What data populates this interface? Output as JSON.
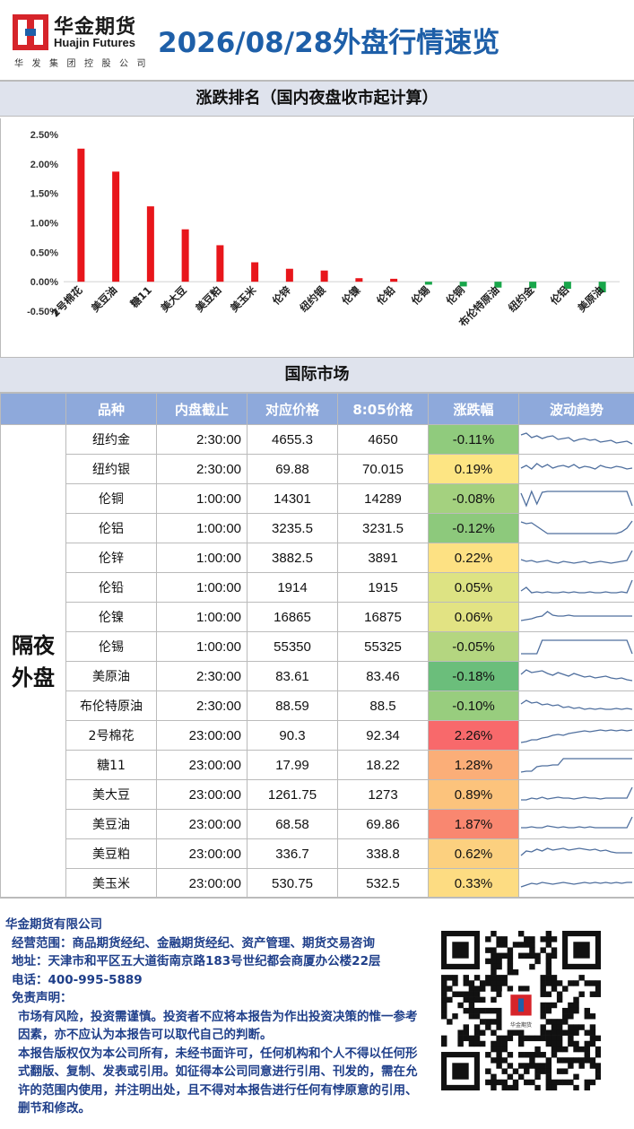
{
  "header": {
    "logo_cn": "华金期货",
    "logo_en": "Huajin Futures",
    "logo_sub": "华发集团控股公司",
    "title": "2026/08/28外盘行情速览",
    "logo_color": "#d6242a",
    "title_color": "#1e5fa8"
  },
  "ranking": {
    "title": "涨跌排名（国内夜盘收市起计算）"
  },
  "chart_data": {
    "type": "bar",
    "categories": [
      "2号棉花",
      "美豆油",
      "糖11",
      "美大豆",
      "美豆粕",
      "美玉米",
      "伦锌",
      "纽约银",
      "伦镍",
      "伦铅",
      "伦锡",
      "伦铜",
      "布伦特原油",
      "纽约金",
      "伦铝",
      "美原油"
    ],
    "values": [
      2.26,
      1.87,
      1.28,
      0.89,
      0.62,
      0.33,
      0.22,
      0.19,
      0.06,
      0.05,
      -0.05,
      -0.08,
      -0.1,
      -0.11,
      -0.12,
      -0.18
    ],
    "ylim": [
      -0.5,
      2.5
    ],
    "yticks": [
      "2.50%",
      "2.00%",
      "1.50%",
      "1.00%",
      "0.50%",
      "0.00%",
      "-0.50%"
    ],
    "up_color": "#e8161b",
    "down_color": "#18a64a"
  },
  "intl": {
    "title": "国际市场",
    "headers": [
      "品种",
      "内盘截止",
      "对应价格",
      "8:05价格",
      "涨跌幅",
      "波动趋势"
    ],
    "group_label": "隔夜外盘",
    "rows": [
      {
        "name": "纽约金",
        "cutoff": "2:30:00",
        "ref": "4655.3",
        "price": "4650",
        "chg": "-0.11%",
        "color": "#90cb7d"
      },
      {
        "name": "纽约银",
        "cutoff": "2:30:00",
        "ref": "69.88",
        "price": "70.015",
        "chg": "0.19%",
        "color": "#fde583"
      },
      {
        "name": "伦铜",
        "cutoff": "1:00:00",
        "ref": "14301",
        "price": "14289",
        "chg": "-0.08%",
        "color": "#a4d17f"
      },
      {
        "name": "伦铝",
        "cutoff": "1:00:00",
        "ref": "3235.5",
        "price": "3231.5",
        "chg": "-0.12%",
        "color": "#8dc97c"
      },
      {
        "name": "伦锌",
        "cutoff": "1:00:00",
        "ref": "3882.5",
        "price": "3891",
        "chg": "0.22%",
        "color": "#fde183"
      },
      {
        "name": "伦铅",
        "cutoff": "1:00:00",
        "ref": "1914",
        "price": "1915",
        "chg": "0.05%",
        "color": "#dde383"
      },
      {
        "name": "伦镍",
        "cutoff": "1:00:00",
        "ref": "16865",
        "price": "16875",
        "chg": "0.06%",
        "color": "#e2e383"
      },
      {
        "name": "伦锡",
        "cutoff": "1:00:00",
        "ref": "55350",
        "price": "55325",
        "chg": "-0.05%",
        "color": "#b4d680"
      },
      {
        "name": "美原油",
        "cutoff": "2:30:00",
        "ref": "83.61",
        "price": "83.46",
        "chg": "-0.18%",
        "color": "#6bbe7b"
      },
      {
        "name": "布伦特原油",
        "cutoff": "2:30:00",
        "ref": "88.59",
        "price": "88.5",
        "chg": "-0.10%",
        "color": "#98cd7e"
      },
      {
        "name": "2号棉花",
        "cutoff": "23:00:00",
        "ref": "90.3",
        "price": "92.34",
        "chg": "2.26%",
        "color": "#f8696b"
      },
      {
        "name": "糖11",
        "cutoff": "23:00:00",
        "ref": "17.99",
        "price": "18.22",
        "chg": "1.28%",
        "color": "#fbae78"
      },
      {
        "name": "美大豆",
        "cutoff": "23:00:00",
        "ref": "1261.75",
        "price": "1273",
        "chg": "0.89%",
        "color": "#fcc37c"
      },
      {
        "name": "美豆油",
        "cutoff": "23:00:00",
        "ref": "68.58",
        "price": "69.86",
        "chg": "1.87%",
        "color": "#f98770"
      },
      {
        "name": "美豆粕",
        "cutoff": "23:00:00",
        "ref": "336.7",
        "price": "338.8",
        "chg": "0.62%",
        "color": "#fcd07f"
      },
      {
        "name": "美玉米",
        "cutoff": "23:00:00",
        "ref": "530.75",
        "price": "532.5",
        "chg": "0.33%",
        "color": "#fddc82"
      }
    ]
  },
  "footer": {
    "company": "华金期货有限公司",
    "scope": "经营范围：商品期货经纪、金融期货经纪、资产管理、期货交易咨询",
    "address": "地址：天津市和平区五大道街南京路183号世纪都会商厦办公楼22层",
    "phone": "电话：400-995-5889",
    "disclaimer_title": "免责声明：",
    "disclaimer_1": "市场有风险，投资需谨慎。投资者不应将本报告为作出投资决策的惟一参考因素，亦不应认为本报告可以取代自己的判断。",
    "disclaimer_2": "本报告版权仅为本公司所有，未经书面许可，任何机构和个人不得以任何形式翻版、复制、发表或引用。如征得本公司同意进行引用、刊发的，需在允许的范围内使用，并注明出处，且不得对本报告进行任何有悖原意的引用、删节和修改。",
    "qr_logo_text": "华金期货"
  }
}
